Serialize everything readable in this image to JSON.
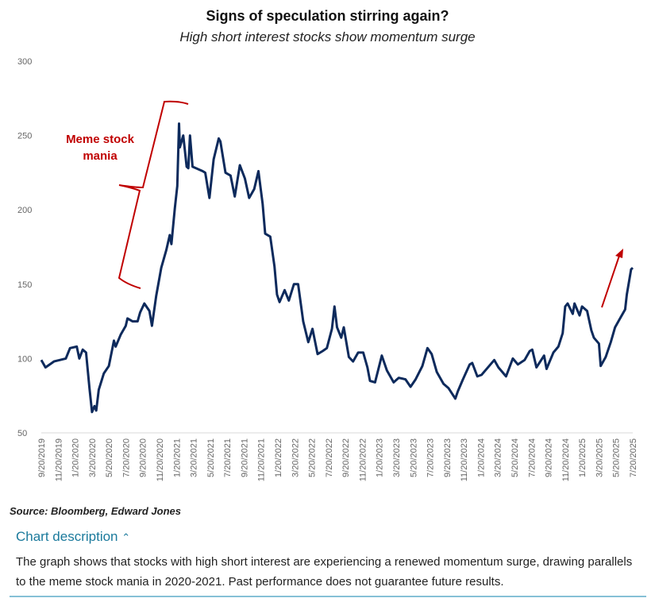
{
  "chart_data": {
    "type": "line",
    "title": "Signs of speculation stirring again?",
    "subtitle": "High short interest stocks show momentum surge",
    "xlabel": "",
    "ylabel": "",
    "ylim": [
      50,
      300
    ],
    "yticks": [
      "50",
      "100",
      "150",
      "200",
      "250",
      "300"
    ],
    "xlim_months_since_2019_09_20": [
      0,
      70
    ],
    "xticks": [
      "9/20/2019",
      "11/20/2019",
      "1/20/2020",
      "3/20/2020",
      "5/20/2020",
      "7/20/2020",
      "9/20/2020",
      "11/20/2020",
      "1/20/2021",
      "3/20/2021",
      "5/20/2021",
      "7/20/2021",
      "9/20/2021",
      "11/20/2021",
      "1/20/2022",
      "3/20/2022",
      "5/20/2022",
      "7/20/2022",
      "9/20/2022",
      "11/20/2022",
      "1/20/2023",
      "3/20/2023",
      "5/20/2023",
      "7/20/2023",
      "9/20/2023",
      "11/20/2023",
      "1/20/2024",
      "3/20/2024",
      "5/20/2024",
      "7/20/2024",
      "9/20/2024",
      "11/20/2024",
      "1/20/2025",
      "3/20/2025",
      "5/20/2025",
      "7/20/2025"
    ],
    "series": [
      {
        "name": "High short interest stocks",
        "color": "#0d2a5c",
        "x": [
          0,
          0.5,
          1.5,
          2.9,
          3.4,
          4.2,
          4.5,
          4.9,
          5.3,
          5.7,
          6.0,
          6.3,
          6.5,
          6.8,
          7.4,
          8.0,
          8.6,
          8.8,
          9.4,
          10.0,
          10.2,
          10.8,
          11.4,
          11.7,
          12.2,
          12.8,
          13.1,
          13.6,
          14.2,
          14.8,
          15.2,
          15.4,
          15.8,
          16.1,
          16.3,
          16.4,
          16.8,
          17.2,
          17.4,
          17.6,
          17.9,
          18.3,
          19.1,
          19.4,
          19.9,
          20.4,
          21.0,
          21.2,
          21.8,
          22.4,
          22.9,
          23.5,
          24.1,
          24.6,
          25.2,
          25.7,
          26.2,
          26.5,
          27.1,
          27.6,
          27.9,
          28.2,
          28.8,
          29.3,
          29.9,
          30.4,
          31.0,
          31.6,
          32.1,
          32.7,
          33.3,
          33.8,
          34.4,
          34.7,
          35.0,
          35.5,
          35.8,
          36.4,
          36.9,
          37.5,
          38.1,
          38.6,
          38.9,
          39.5,
          40.3,
          40.9,
          41.7,
          42.3,
          43.1,
          43.7,
          44.3,
          45.1,
          45.7,
          46.2,
          46.8,
          47.6,
          48.2,
          49.0,
          49.3,
          49.9,
          50.7,
          51.0,
          51.6,
          52.1,
          53.0,
          53.6,
          54.1,
          55.0,
          55.8,
          56.4,
          57.2,
          57.8,
          58.1,
          58.6,
          59.5,
          59.8,
          60.6,
          61.2,
          61.7,
          62.0,
          62.3,
          62.9,
          63.1,
          63.7,
          64.0,
          64.6,
          65.1,
          65.4,
          66.0,
          66.2,
          66.8,
          67.4,
          67.9,
          68.5,
          69.1,
          69.3,
          69.8,
          70.0
        ],
        "y": [
          99,
          94,
          98,
          100,
          107,
          108,
          100,
          106,
          104,
          80,
          64,
          68,
          65,
          79,
          90,
          95,
          112,
          108,
          116,
          122,
          127,
          125,
          125,
          131,
          137,
          132,
          122,
          142,
          161,
          173,
          183,
          177,
          201,
          216,
          258,
          242,
          250,
          229,
          228,
          250,
          229,
          228,
          226,
          225,
          208,
          234,
          248,
          246,
          225,
          223,
          209,
          230,
          221,
          208,
          214,
          226,
          204,
          184,
          182,
          162,
          143,
          138,
          146,
          139,
          150,
          150,
          125,
          111,
          120,
          103,
          105,
          107,
          120,
          135,
          121,
          114,
          121,
          101,
          98,
          104,
          104,
          94,
          85,
          84,
          102,
          92,
          84,
          87,
          86,
          81,
          86,
          95,
          107,
          103,
          91,
          83,
          80,
          73,
          78,
          86,
          96,
          97,
          88,
          89,
          95,
          99,
          94,
          88,
          100,
          96,
          99,
          105,
          106,
          94,
          102,
          93,
          104,
          108,
          117,
          135,
          137,
          130,
          137,
          129,
          135,
          132,
          119,
          114,
          110,
          95,
          101,
          111,
          121,
          127,
          133,
          143,
          160,
          161
        ]
      }
    ],
    "annotations": [
      {
        "text": "Meme stock mania",
        "color": "#c00000"
      }
    ],
    "grid": false,
    "legend": "none"
  },
  "source": "Source: Bloomberg, Edward Jones",
  "description": {
    "toggle_label": "Chart description",
    "toggle_icon": "chevron-up-icon",
    "text": "The graph shows that stocks with high short interest are experiencing a renewed momentum surge, drawing parallels to the meme stock mania in 2020-2021. Past performance does not guarantee future results."
  }
}
